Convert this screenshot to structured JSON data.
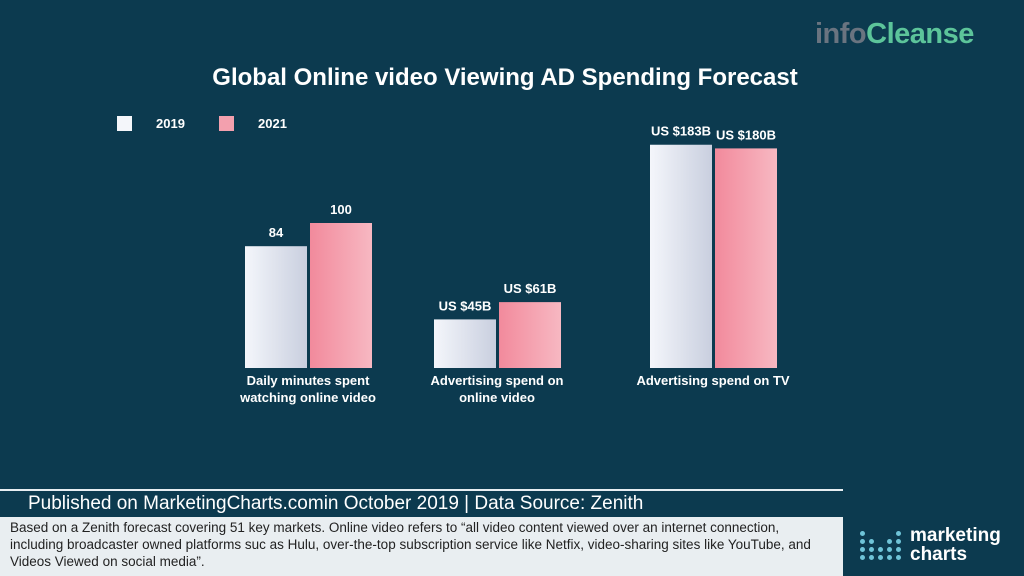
{
  "logo": {
    "part1": "info",
    "part2": "Cleanse"
  },
  "chart_data": {
    "type": "bar",
    "title": "Global Online video Viewing  AD Spending Forecast",
    "legend": [
      "2019",
      "2021"
    ],
    "legend_position": "top-left",
    "categories": [
      "Daily minutes spent watching online video",
      "Advertising spend on online video",
      "Advertising spend on TV"
    ],
    "series": [
      {
        "name": "2019",
        "values": [
          84,
          45,
          183
        ],
        "labels": [
          "84",
          "US $45B",
          "US $183B"
        ],
        "color": "#e3e7f1"
      },
      {
        "name": "2021",
        "values": [
          100,
          61,
          180
        ],
        "labels": [
          "100",
          "US $61B",
          "US $180B"
        ],
        "color": "#f3a0ae"
      }
    ],
    "grid": false
  },
  "footer": {
    "published": "Published on MarketingCharts.comin October 2019 |  Data Source: Zenith",
    "note": "Based on a Zenith forecast covering 51 key markets. Online video refers to “all video content viewed over an internet connection, including broadcaster owned platforms suc as Hulu, over-the-top subscription service like Netfix, video-sharing sites like YouTube, and Videos Viewed on social media”."
  },
  "brand": {
    "line1": "marketing",
    "line2": "charts"
  }
}
